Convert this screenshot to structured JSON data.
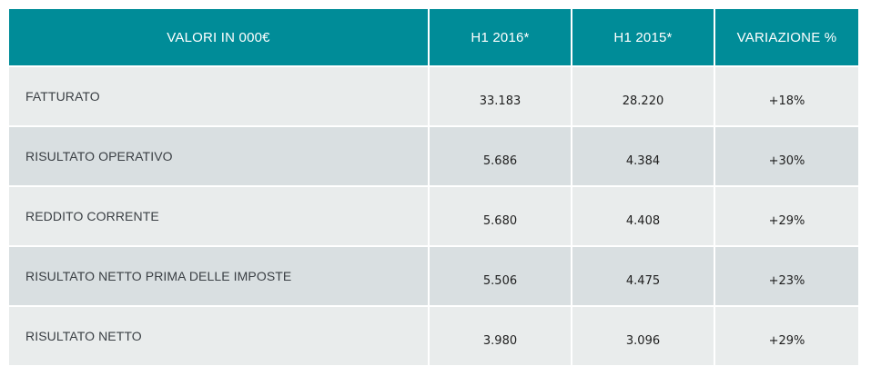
{
  "table": {
    "headers": [
      "VALORI IN 000€",
      "H1 2016*",
      "H1 2015*",
      "VARIAZIONE %"
    ],
    "rows": [
      {
        "label": "FATTURATO",
        "h1_2016": "33.183",
        "h1_2015": "28.220",
        "variazione": "+18%"
      },
      {
        "label": "RISULTATO OPERATIVO",
        "h1_2016": "5.686",
        "h1_2015": "4.384",
        "variazione": "+30%"
      },
      {
        "label": "REDDITO CORRENTE",
        "h1_2016": "5.680",
        "h1_2015": "4.408",
        "variazione": "+29%"
      },
      {
        "label": "RISULTATO NETTO PRIMA DELLE IMPOSTE",
        "h1_2016": "5.506",
        "h1_2015": "4.475",
        "variazione": "+23%"
      },
      {
        "label": "RISULTATO NETTO",
        "h1_2016": "3.980",
        "h1_2015": "3.096",
        "variazione": "+29%"
      }
    ]
  },
  "colors": {
    "header_bg": "#008c98",
    "header_text": "#ffffff",
    "row_light": "#e9ecec",
    "row_dark": "#d9dfe1"
  }
}
